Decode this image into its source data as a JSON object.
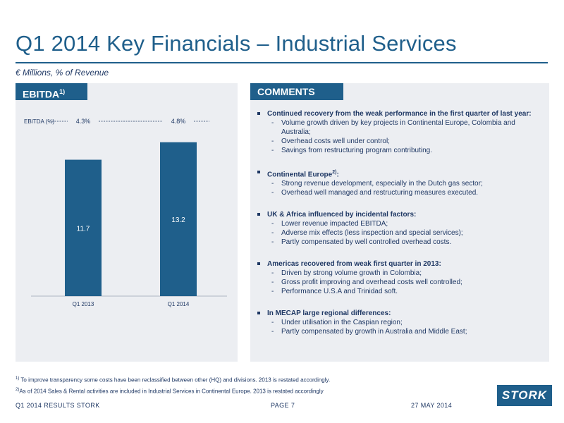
{
  "title": "Q1 2014 Key Financials – Industrial Services",
  "subtitle": "€ Millions, % of Revenue",
  "tabs": {
    "left_label": "EBITDA",
    "left_sup": "1)",
    "right_label": "COMMENTS"
  },
  "colors": {
    "brand": "#1f5f8b",
    "panel_bg": "#eceef2",
    "text": "#1f3864"
  },
  "chart_data": {
    "type": "bar",
    "categories": [
      "Q1 2013",
      "Q1 2014"
    ],
    "values": [
      11.7,
      13.2
    ],
    "value_labels": [
      "11.7",
      "13.2"
    ],
    "ratio_label": "EBITDA (%)",
    "ratios": [
      "4.3%",
      "4.8%"
    ],
    "ylim": [
      0,
      15
    ],
    "color": "#1f5f8b"
  },
  "comments": [
    {
      "head": "Continued recovery from the weak performance in the first quarter of last year:",
      "sup": "",
      "subs": [
        "Volume growth driven by key projects in Continental Europe, Colombia and Australia;",
        "Overhead costs well under control;",
        "Savings from restructuring program contributing."
      ]
    },
    {
      "head": "Continental Europe",
      "sup": "2)",
      "head_suffix": ":",
      "subs": [
        "Strong revenue development, especially in the Dutch gas sector;",
        "Overhead well managed and restructuring measures executed."
      ]
    },
    {
      "head": "UK & Africa influenced by incidental factors:",
      "sup": "",
      "subs": [
        "Lower revenue impacted EBITDA;",
        "Adverse mix effects (less inspection and special services);",
        "Partly compensated by well controlled overhead costs."
      ]
    },
    {
      "head": "Americas recovered from weak first quarter in 2013:",
      "sup": "",
      "subs": [
        "Driven by strong volume growth in Colombia;",
        "Gross profit improving and overhead costs well controlled;",
        "Performance U.S.A and Trinidad soft."
      ]
    },
    {
      "head": "In MECAP large regional differences:",
      "sup": "",
      "subs": [
        "Under utilisation in the Caspian region;",
        "Partly compensated by growth in Australia and Middle East;"
      ]
    }
  ],
  "footnotes": [
    {
      "mark": "1)",
      "text": " To improve transparency some costs have been reclassified between other (HQ) and divisions. 2013 is restated accordingly."
    },
    {
      "mark": "2)",
      "text": "As of 2014 Sales  & Rental activities are included in  Industrial Services in Continental Europe. 2013 is restated accordingly"
    }
  ],
  "footer": {
    "left": "Q1 2014 RESULTS STORK",
    "mid": "PAGE 7",
    "right": "27 MAY 2014"
  },
  "logo": "STORK"
}
